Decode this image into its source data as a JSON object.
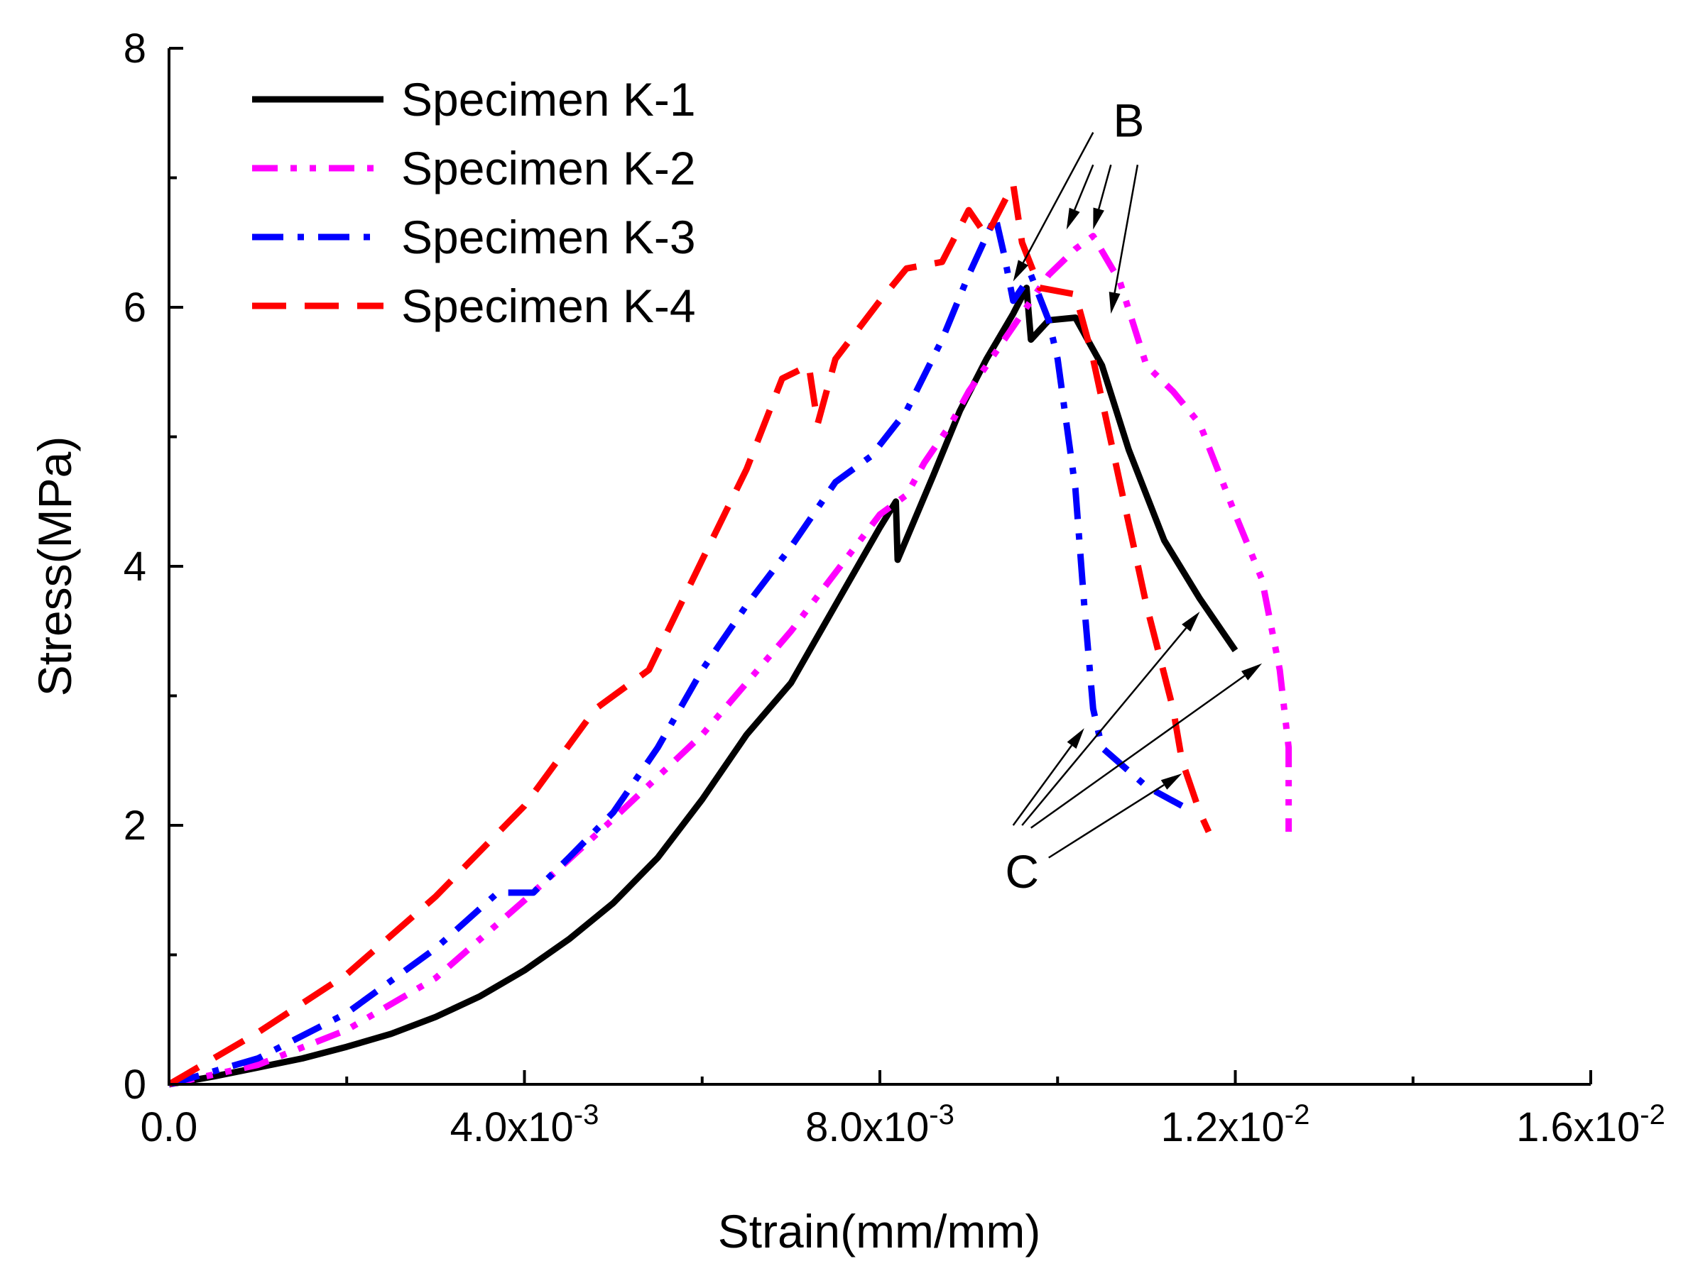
{
  "chart_data": {
    "type": "line",
    "title": "",
    "xlabel": "Strain(mm/mm)",
    "ylabel": "Stress(MPa)",
    "xlim": [
      0,
      0.016
    ],
    "ylim": [
      0,
      8
    ],
    "x_ticks": [
      {
        "value": 0.0,
        "mantissa": "0.0",
        "exp": ""
      },
      {
        "value": 0.004,
        "mantissa": "4.0x10",
        "exp": "-3"
      },
      {
        "value": 0.008,
        "mantissa": "8.0x10",
        "exp": "-3"
      },
      {
        "value": 0.012,
        "mantissa": "1.2x10",
        "exp": "-2"
      },
      {
        "value": 0.016,
        "mantissa": "1.6x10",
        "exp": "-2"
      }
    ],
    "x_minor_ticks": [
      0.002,
      0.006,
      0.01,
      0.014
    ],
    "y_ticks": [
      {
        "value": 0,
        "label": "0"
      },
      {
        "value": 2,
        "label": "2"
      },
      {
        "value": 4,
        "label": "4"
      },
      {
        "value": 6,
        "label": "6"
      },
      {
        "value": 8,
        "label": "8"
      }
    ],
    "y_minor_ticks": [
      1,
      3,
      5,
      7
    ],
    "legend_position": "top-left",
    "series": [
      {
        "name": "Specimen K-1",
        "color": "#000000",
        "dash": "solid",
        "points": [
          [
            0,
            0
          ],
          [
            0.0005,
            0.06
          ],
          [
            0.001,
            0.13
          ],
          [
            0.0015,
            0.2
          ],
          [
            0.002,
            0.29
          ],
          [
            0.0025,
            0.39
          ],
          [
            0.003,
            0.52
          ],
          [
            0.0035,
            0.68
          ],
          [
            0.004,
            0.88
          ],
          [
            0.0045,
            1.12
          ],
          [
            0.005,
            1.4
          ],
          [
            0.0055,
            1.75
          ],
          [
            0.006,
            2.2
          ],
          [
            0.0065,
            2.7
          ],
          [
            0.007,
            3.1
          ],
          [
            0.0075,
            3.7
          ],
          [
            0.008,
            4.3
          ],
          [
            0.00818,
            4.5
          ],
          [
            0.0082,
            4.05
          ],
          [
            0.0086,
            4.7
          ],
          [
            0.0089,
            5.2
          ],
          [
            0.0092,
            5.6
          ],
          [
            0.0095,
            5.95
          ],
          [
            0.00965,
            6.15
          ],
          [
            0.0097,
            5.75
          ],
          [
            0.0099,
            5.9
          ],
          [
            0.0102,
            5.92
          ],
          [
            0.0105,
            5.55
          ],
          [
            0.0108,
            4.9
          ],
          [
            0.0112,
            4.2
          ],
          [
            0.0116,
            3.75
          ],
          [
            0.012,
            3.35
          ]
        ]
      },
      {
        "name": "Specimen K-2",
        "color": "#ff00ff",
        "dash": "dash-dot-dot",
        "points": [
          [
            0,
            0
          ],
          [
            0.001,
            0.15
          ],
          [
            0.002,
            0.42
          ],
          [
            0.003,
            0.82
          ],
          [
            0.004,
            1.42
          ],
          [
            0.005,
            2.05
          ],
          [
            0.006,
            2.7
          ],
          [
            0.007,
            3.5
          ],
          [
            0.0075,
            3.95
          ],
          [
            0.008,
            4.4
          ],
          [
            0.0083,
            4.55
          ],
          [
            0.0085,
            4.8
          ],
          [
            0.0088,
            5.1
          ],
          [
            0.009,
            5.35
          ],
          [
            0.0093,
            5.65
          ],
          [
            0.0096,
            5.95
          ],
          [
            0.0099,
            6.25
          ],
          [
            0.0102,
            6.45
          ],
          [
            0.0104,
            6.55
          ],
          [
            0.0107,
            6.2
          ],
          [
            0.011,
            5.55
          ],
          [
            0.0113,
            5.35
          ],
          [
            0.0116,
            5.1
          ],
          [
            0.012,
            4.4
          ],
          [
            0.0123,
            3.9
          ],
          [
            0.0125,
            3.2
          ],
          [
            0.0126,
            2.6
          ],
          [
            0.0126,
            1.95
          ]
        ]
      },
      {
        "name": "Specimen K-3",
        "color": "#0000ff",
        "dash": "dash-dot",
        "points": [
          [
            0,
            0
          ],
          [
            0.001,
            0.2
          ],
          [
            0.002,
            0.55
          ],
          [
            0.003,
            1.05
          ],
          [
            0.0037,
            1.48
          ],
          [
            0.0041,
            1.48
          ],
          [
            0.0045,
            1.75
          ],
          [
            0.005,
            2.1
          ],
          [
            0.0055,
            2.6
          ],
          [
            0.006,
            3.2
          ],
          [
            0.0065,
            3.7
          ],
          [
            0.007,
            4.15
          ],
          [
            0.0075,
            4.65
          ],
          [
            0.0079,
            4.85
          ],
          [
            0.0083,
            5.2
          ],
          [
            0.0087,
            5.75
          ],
          [
            0.009,
            6.25
          ],
          [
            0.0093,
            6.7
          ],
          [
            0.0094,
            6.4
          ],
          [
            0.0095,
            6.05
          ],
          [
            0.0097,
            6.25
          ],
          [
            0.0099,
            5.9
          ],
          [
            0.01,
            5.6
          ],
          [
            0.0102,
            4.6
          ],
          [
            0.0103,
            3.7
          ],
          [
            0.0104,
            2.9
          ],
          [
            0.0105,
            2.6
          ],
          [
            0.011,
            2.3
          ],
          [
            0.0114,
            2.15
          ]
        ]
      },
      {
        "name": "Specimen K-4",
        "color": "#ff0000",
        "dash": "dashed",
        "points": [
          [
            0,
            0
          ],
          [
            0.001,
            0.4
          ],
          [
            0.002,
            0.85
          ],
          [
            0.003,
            1.45
          ],
          [
            0.004,
            2.15
          ],
          [
            0.0048,
            2.9
          ],
          [
            0.0054,
            3.2
          ],
          [
            0.006,
            4.05
          ],
          [
            0.0065,
            4.75
          ],
          [
            0.0069,
            5.45
          ],
          [
            0.0072,
            5.55
          ],
          [
            0.0073,
            5.1
          ],
          [
            0.0075,
            5.6
          ],
          [
            0.008,
            6.05
          ],
          [
            0.0083,
            6.3
          ],
          [
            0.0087,
            6.35
          ],
          [
            0.009,
            6.75
          ],
          [
            0.0092,
            6.55
          ],
          [
            0.0095,
            6.95
          ],
          [
            0.0096,
            6.5
          ],
          [
            0.0098,
            6.15
          ],
          [
            0.0102,
            6.1
          ],
          [
            0.0104,
            5.6
          ],
          [
            0.0107,
            4.65
          ],
          [
            0.011,
            3.7
          ],
          [
            0.0113,
            2.9
          ],
          [
            0.0114,
            2.5
          ],
          [
            0.0116,
            2.1
          ],
          [
            0.0117,
            1.95
          ]
        ]
      }
    ],
    "annotations": [
      {
        "label": "B",
        "label_at": [
          0.0108,
          7.45
        ],
        "arrows": [
          {
            "from": [
              0.0104,
              7.35
            ],
            "to": [
              0.0095,
              6.2
            ]
          },
          {
            "from": [
              0.0104,
              7.1
            ],
            "to": [
              0.0101,
              6.6
            ]
          },
          {
            "from": [
              0.0106,
              7.1
            ],
            "to": [
              0.0104,
              6.6
            ]
          },
          {
            "from": [
              0.0109,
              7.1
            ],
            "to": [
              0.0106,
              5.95
            ]
          }
        ]
      },
      {
        "label": "C",
        "label_at": [
          0.0096,
          1.65
        ],
        "arrows": [
          {
            "from": [
              0.0095,
              2.0
            ],
            "to": [
              0.0103,
              2.75
            ]
          },
          {
            "from": [
              0.0096,
              2.0
            ],
            "to": [
              0.0116,
              3.65
            ]
          },
          {
            "from": [
              0.0097,
              1.98
            ],
            "to": [
              0.0123,
              3.25
            ]
          },
          {
            "from": [
              0.0099,
              1.75
            ],
            "to": [
              0.0114,
              2.4
            ]
          }
        ]
      }
    ]
  }
}
